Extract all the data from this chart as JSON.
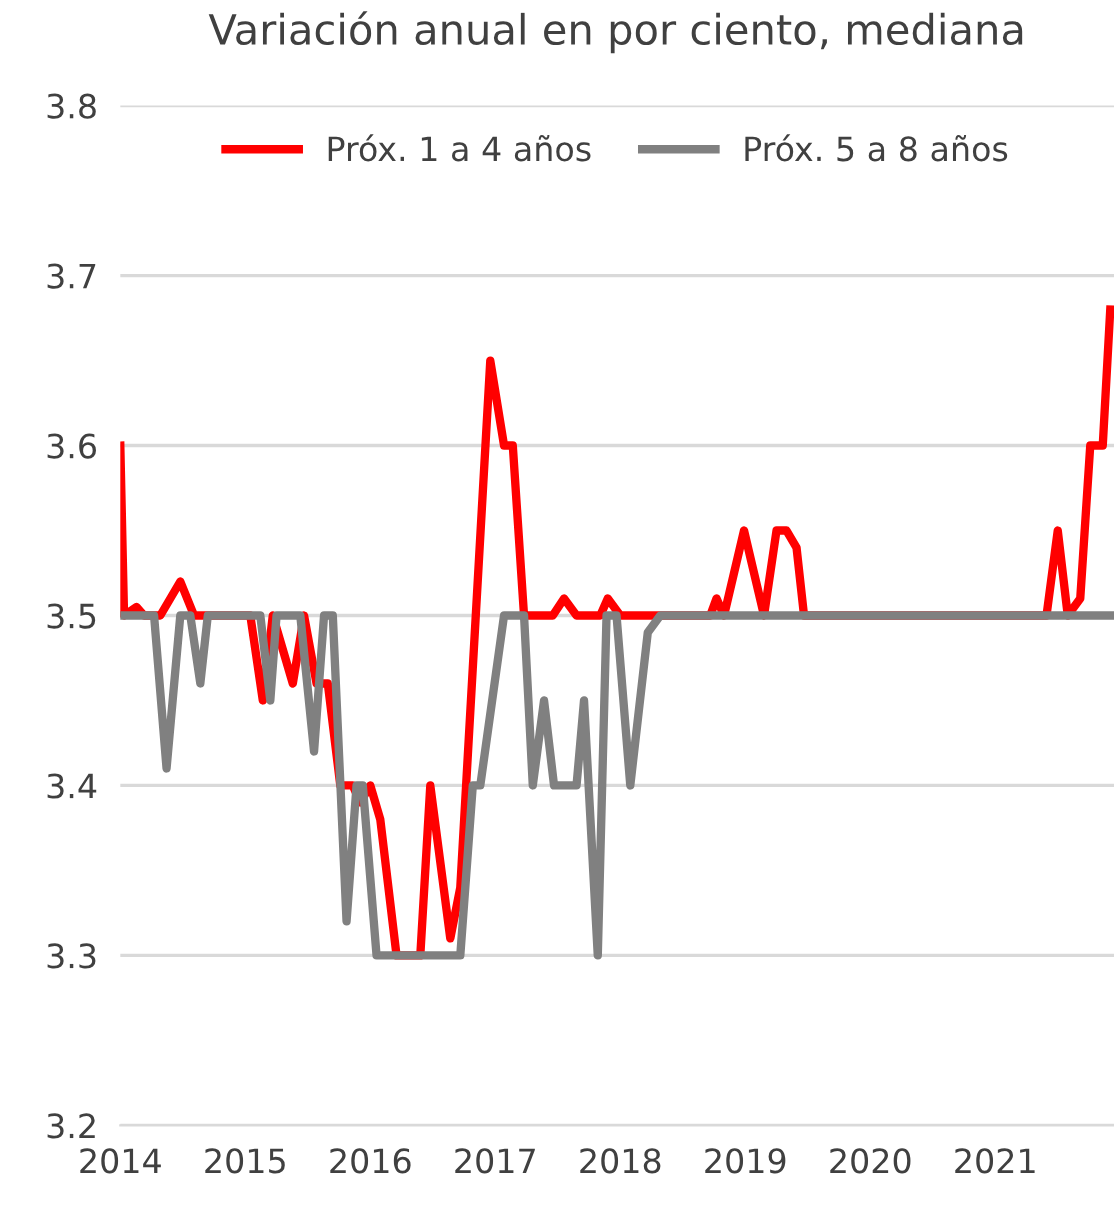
{
  "chart_data": {
    "type": "line",
    "title": "Variación anual en por ciento, mediana",
    "xlim": [
      2014,
      2021.95
    ],
    "xticks": [
      2014,
      2015,
      2016,
      2017,
      2018,
      2019,
      2020,
      2021
    ],
    "ylim": [
      3.2,
      3.8
    ],
    "yticks": [
      3.2,
      3.3,
      3.4,
      3.5,
      3.6,
      3.7,
      3.8
    ],
    "grid": "y",
    "legend": "top",
    "marker": "none",
    "line_style": "solid",
    "series": [
      {
        "name": "Próx. 1 a 4 años",
        "color": "#ff0000",
        "x": [
          2014.0,
          2014.03,
          2014.13,
          2014.19,
          2014.32,
          2014.48,
          2014.59,
          2015.04,
          2015.14,
          2015.22,
          2015.38,
          2015.47,
          2015.57,
          2015.66,
          2015.76,
          2015.86,
          2015.92,
          2016.0,
          2016.08,
          2016.21,
          2016.4,
          2016.48,
          2016.64,
          2016.72,
          2016.96,
          2017.07,
          2017.14,
          2017.23,
          2017.46,
          2017.55,
          2017.65,
          2017.84,
          2017.9,
          2018.0,
          2018.72,
          2018.77,
          2018.83,
          2018.99,
          2019.15,
          2019.25,
          2019.33,
          2019.41,
          2019.47,
          2021.41,
          2021.5,
          2021.58,
          2021.68,
          2021.76,
          2021.86,
          2021.92
        ],
        "values": [
          3.6,
          3.5,
          3.505,
          3.5,
          3.5,
          3.52,
          3.5,
          3.5,
          3.45,
          3.5,
          3.46,
          3.5,
          3.46,
          3.46,
          3.4,
          3.4,
          3.39,
          3.4,
          3.38,
          3.3,
          3.3,
          3.4,
          3.31,
          3.34,
          3.65,
          3.6,
          3.6,
          3.5,
          3.5,
          3.51,
          3.5,
          3.5,
          3.51,
          3.5,
          3.5,
          3.51,
          3.5,
          3.55,
          3.5,
          3.55,
          3.55,
          3.54,
          3.5,
          3.5,
          3.55,
          3.5,
          3.51,
          3.6,
          3.6,
          3.68
        ]
      },
      {
        "name": "Próx. 5 a 8 años",
        "color": "#808080",
        "x": [
          2014.0,
          2014.27,
          2014.37,
          2014.48,
          2014.56,
          2014.64,
          2014.7,
          2015.12,
          2015.2,
          2015.25,
          2015.31,
          2015.44,
          2015.55,
          2015.63,
          2015.7,
          2015.81,
          2015.89,
          2015.94,
          2016.05,
          2016.72,
          2016.82,
          2016.88,
          2017.07,
          2017.23,
          2017.3,
          2017.39,
          2017.47,
          2017.65,
          2017.71,
          2017.82,
          2017.89,
          2017.97,
          2018.08,
          2018.22,
          2018.32,
          2021.95
        ],
        "values": [
          3.5,
          3.5,
          3.41,
          3.5,
          3.5,
          3.46,
          3.5,
          3.5,
          3.45,
          3.5,
          3.5,
          3.5,
          3.42,
          3.5,
          3.5,
          3.32,
          3.4,
          3.4,
          3.3,
          3.3,
          3.4,
          3.4,
          3.5,
          3.5,
          3.4,
          3.45,
          3.4,
          3.4,
          3.45,
          3.3,
          3.5,
          3.5,
          3.4,
          3.49,
          3.5,
          3.5
        ]
      }
    ]
  }
}
